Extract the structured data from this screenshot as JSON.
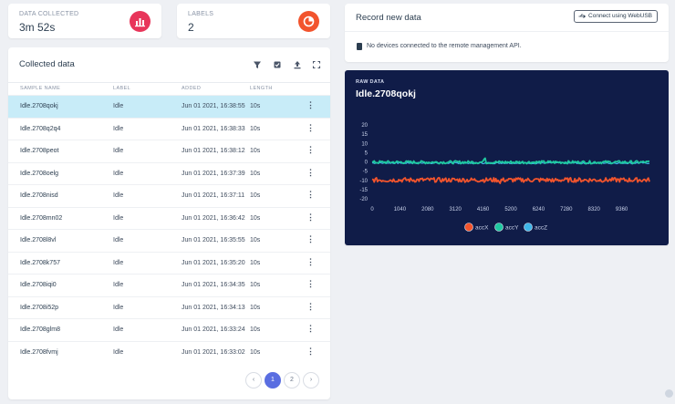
{
  "stats": [
    {
      "label": "DATA COLLECTED",
      "value": "3m 52s",
      "icon": "chart-bar-icon",
      "color": "#e8355a"
    },
    {
      "label": "LABELS",
      "value": "2",
      "icon": "label-pie-icon",
      "color": "#f2542d"
    }
  ],
  "collected": {
    "title": "Collected data",
    "tools": [
      "filter-icon",
      "select-icon",
      "upload-icon",
      "expand-icon"
    ],
    "columns": [
      "SAMPLE NAME",
      "LABEL",
      "ADDED",
      "LENGTH"
    ],
    "rows": [
      {
        "name": "Idle.2708qokj",
        "label": "Idle",
        "added": "Jun 01 2021, 16:38:55",
        "length": "10s"
      },
      {
        "name": "Idle.2708q2q4",
        "label": "Idle",
        "added": "Jun 01 2021, 16:38:33",
        "length": "10s"
      },
      {
        "name": "Idle.2708peot",
        "label": "Idle",
        "added": "Jun 01 2021, 16:38:12",
        "length": "10s"
      },
      {
        "name": "Idle.2708oelg",
        "label": "Idle",
        "added": "Jun 01 2021, 16:37:39",
        "length": "10s"
      },
      {
        "name": "Idle.2708nisd",
        "label": "Idle",
        "added": "Jun 01 2021, 16:37:11",
        "length": "10s"
      },
      {
        "name": "Idle.2708mn02",
        "label": "Idle",
        "added": "Jun 01 2021, 16:36:42",
        "length": "10s"
      },
      {
        "name": "Idle.2708l8vl",
        "label": "Idle",
        "added": "Jun 01 2021, 16:35:55",
        "length": "10s"
      },
      {
        "name": "Idle.2708k757",
        "label": "Idle",
        "added": "Jun 01 2021, 16:35:20",
        "length": "10s"
      },
      {
        "name": "Idle.2708iqi0",
        "label": "Idle",
        "added": "Jun 01 2021, 16:34:35",
        "length": "10s"
      },
      {
        "name": "Idle.2708i52p",
        "label": "Idle",
        "added": "Jun 01 2021, 16:34:13",
        "length": "10s"
      },
      {
        "name": "Idle.2708glm8",
        "label": "Idle",
        "added": "Jun 01 2021, 16:33:24",
        "length": "10s"
      },
      {
        "name": "Idle.2708fvmj",
        "label": "Idle",
        "added": "Jun 01 2021, 16:33:02",
        "length": "10s"
      }
    ],
    "row_menu": "⋮",
    "selected_index": 0,
    "pagination": {
      "prev": "‹",
      "pages": [
        "1",
        "2"
      ],
      "current": "1",
      "next": "›"
    }
  },
  "record": {
    "title": "Record new data",
    "connect_label": "Connect using WebUSB",
    "message": "No devices connected to the remote management API."
  },
  "raw": {
    "subtitle": "RAW DATA",
    "sample_name": "Idle.2708qokj",
    "colors": {
      "panel": "#101c48",
      "accX": "#f2542d",
      "accY": "#1fc8a0",
      "accZ": "#3fb6e8"
    }
  },
  "chart_data": {
    "type": "line",
    "title": "Idle.2708qokj",
    "x_ticks": [
      "0",
      "1040",
      "2080",
      "3120",
      "4160",
      "5200",
      "6240",
      "7280",
      "8320",
      "9360"
    ],
    "y_ticks": [
      "20",
      "15",
      "10",
      "5",
      "0",
      "-5",
      "-10",
      "-15",
      "-20"
    ],
    "xlim": [
      0,
      10400
    ],
    "ylim": [
      -20,
      20
    ],
    "series": [
      {
        "name": "accX",
        "mean": -9.8,
        "noise": 1.2
      },
      {
        "name": "accY",
        "mean": -0.2,
        "noise": 0.8
      },
      {
        "name": "accZ",
        "mean": -0.6,
        "noise": 0.4
      }
    ]
  }
}
